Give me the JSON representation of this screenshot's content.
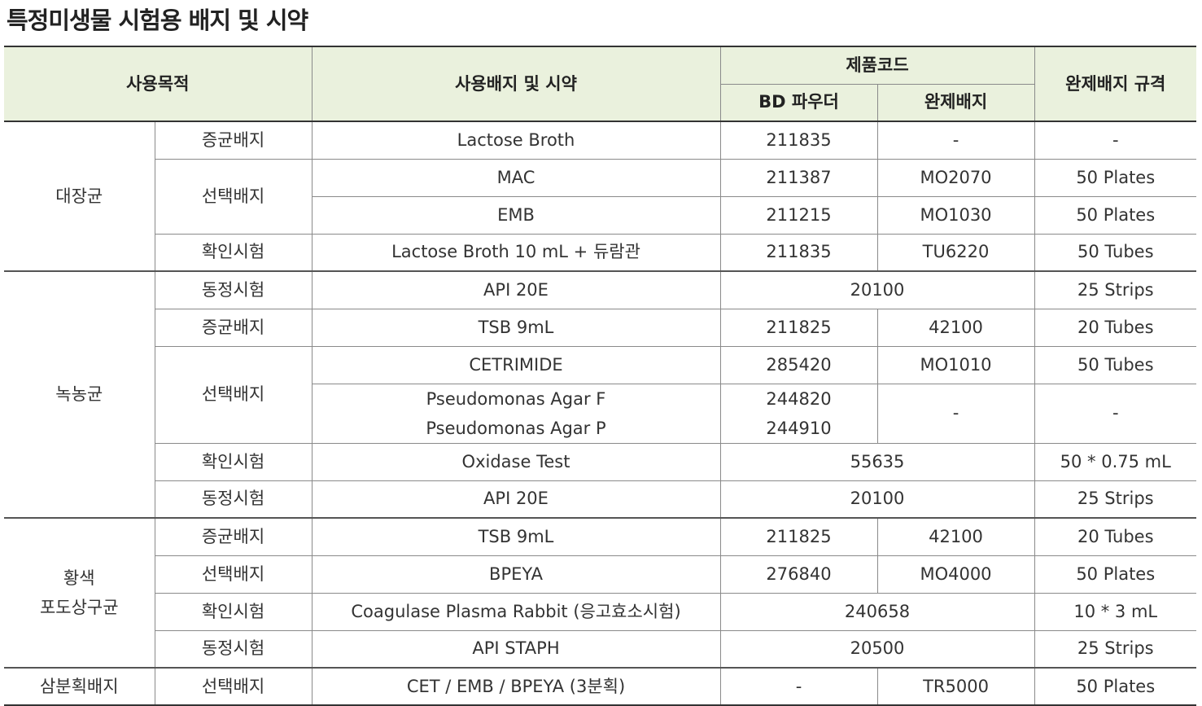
{
  "title": "특정미생물 시험용 배지 및 시약",
  "header": {
    "purpose": "사용목적",
    "media": "사용배지 및 시약",
    "code": "제품코드",
    "bd": "BD 파우더",
    "ready": "완제배지",
    "spec": "완제배지 규격"
  },
  "rows": [
    [
      "대장균",
      "증균배지",
      "Lactose Broth",
      "211835",
      "-",
      "-"
    ],
    [
      "선택배지",
      "MAC",
      "211387",
      "MO2070",
      "50 Plates"
    ],
    [
      "EMB",
      "211215",
      "MO1030",
      "50 Plates"
    ],
    [
      "확인시험",
      "Lactose Broth 10 mL + 듀람관",
      "211835",
      "TU6220",
      "50 Tubes"
    ],
    [
      "녹농균",
      "동정시험",
      "API 20E",
      "20100",
      "25 Strips"
    ],
    [
      "증균배지",
      "TSB 9mL",
      "211825",
      "42100",
      "20 Tubes"
    ],
    [
      "선택배지",
      "CETRIMIDE",
      "285420",
      "MO1010",
      "50 Tubes"
    ],
    [
      [
        "Pseudomonas Agar F",
        "Pseudomonas Agar P"
      ],
      [
        "244820",
        "244910"
      ],
      "-",
      "-"
    ],
    [
      "확인시험",
      "Oxidase Test",
      "55635",
      "50 * 0.75 mL"
    ],
    [
      "동정시험",
      "API 20E",
      "20100",
      "25 Strips"
    ],
    [
      [
        "황색",
        "포도상구균"
      ],
      "증균배지",
      "TSB 9mL",
      "211825",
      "42100",
      "20 Tubes"
    ],
    [
      "선택배지",
      "BPEYA",
      "276840",
      "MO4000",
      "50 Plates"
    ],
    [
      "확인시험",
      "Coagulase Plasma Rabbit (응고효소시험)",
      "240658",
      "10 * 3 mL"
    ],
    [
      "동정시험",
      "API STAPH",
      "20500",
      "25 Strips"
    ],
    [
      "삼분획배지",
      "선택배지",
      "CET / EMB / BPEYA (3분획)",
      "-",
      "TR5000",
      "50 Plates"
    ]
  ]
}
